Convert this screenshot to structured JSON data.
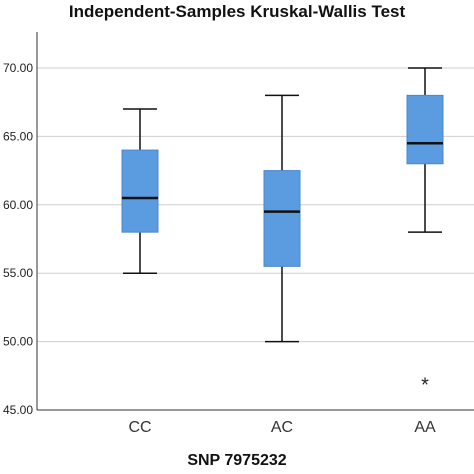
{
  "chart_data": {
    "type": "boxplot",
    "title": "Independent-Samples Kruskal-Wallis Test",
    "xlabel": "SNP 7975232",
    "ylabel": "",
    "ylim": [
      45,
      70.5
    ],
    "yticks": [
      "45.00",
      "50.00",
      "55.00",
      "60.00",
      "65.00",
      "70.00"
    ],
    "ytick_values": [
      45,
      50,
      55,
      60,
      65,
      70
    ],
    "grid": "horizontal",
    "box_color": "#5b9be0",
    "categories": [
      "CC",
      "AC",
      "AA"
    ],
    "boxes": [
      {
        "category": "CC",
        "whisker_low": 55.0,
        "q1": 58.0,
        "median": 60.5,
        "q3": 64.0,
        "whisker_high": 67.0,
        "outliers": []
      },
      {
        "category": "AC",
        "whisker_low": 50.0,
        "q1": 55.5,
        "median": 59.5,
        "q3": 62.5,
        "whisker_high": 68.0,
        "outliers": []
      },
      {
        "category": "AA",
        "whisker_low": 58.0,
        "q1": 63.0,
        "median": 64.5,
        "q3": 68.0,
        "whisker_high": 70.0,
        "outliers": [
          47.0
        ]
      }
    ],
    "outlier_marker": "*"
  }
}
